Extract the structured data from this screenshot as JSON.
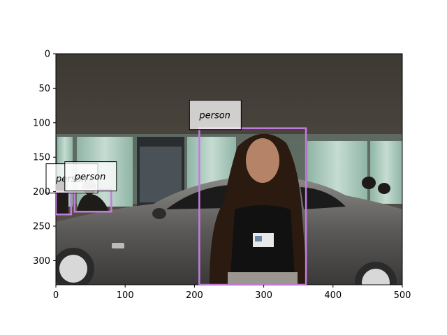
{
  "image": {
    "description_scene": "photo",
    "x_range": [
      0,
      500
    ],
    "y_range": [
      335,
      0
    ]
  },
  "axes": {
    "x_ticks": [
      "0",
      "100",
      "200",
      "300",
      "400",
      "500"
    ],
    "y_ticks": [
      "0",
      "50",
      "100",
      "150",
      "200",
      "250",
      "300"
    ]
  },
  "detections": [
    {
      "label": "person",
      "x1": 207,
      "y1": 108,
      "x2": 361,
      "y2": 335,
      "color": "#c47be0"
    },
    {
      "label": "person",
      "x1": 0,
      "y1": 200,
      "x2": 22,
      "y2": 233,
      "color": "#c47be0"
    },
    {
      "label": "person",
      "x1": 27,
      "y1": 197,
      "x2": 80,
      "y2": 229,
      "color": "#c47be0"
    }
  ],
  "colors": {
    "box": "#c47be0",
    "label_bg": "#ffffff",
    "wall": "#4f4a40",
    "floor": "#2b2822"
  }
}
